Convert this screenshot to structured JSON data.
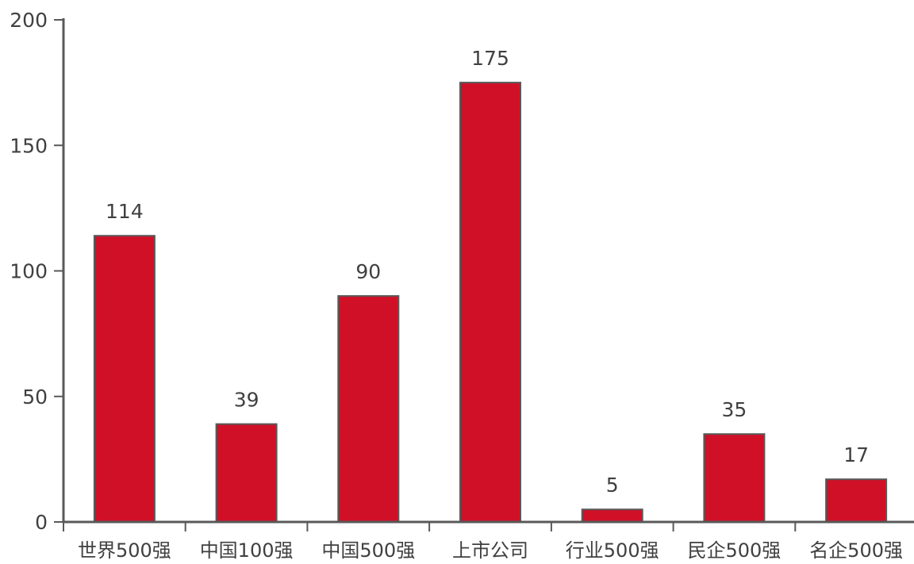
{
  "chart_data": {
    "type": "bar",
    "title": "",
    "xlabel": "",
    "ylabel": "",
    "categories": [
      "世界500强",
      "中国100强",
      "中国500强",
      "上市公司",
      "行业500强",
      "民企500强",
      "名企500强"
    ],
    "values": [
      114,
      39,
      90,
      175,
      5,
      35,
      17
    ],
    "data_labels": [
      "114",
      "39",
      "90",
      "175",
      "5",
      "35",
      "17"
    ],
    "ylim": [
      0,
      200
    ],
    "yticks": [
      0,
      50,
      100,
      150,
      200
    ],
    "ytick_labels": [
      "0",
      "50",
      "100",
      "150",
      "200"
    ],
    "grid": false,
    "legend": "none",
    "bar_color": "#d01027"
  }
}
